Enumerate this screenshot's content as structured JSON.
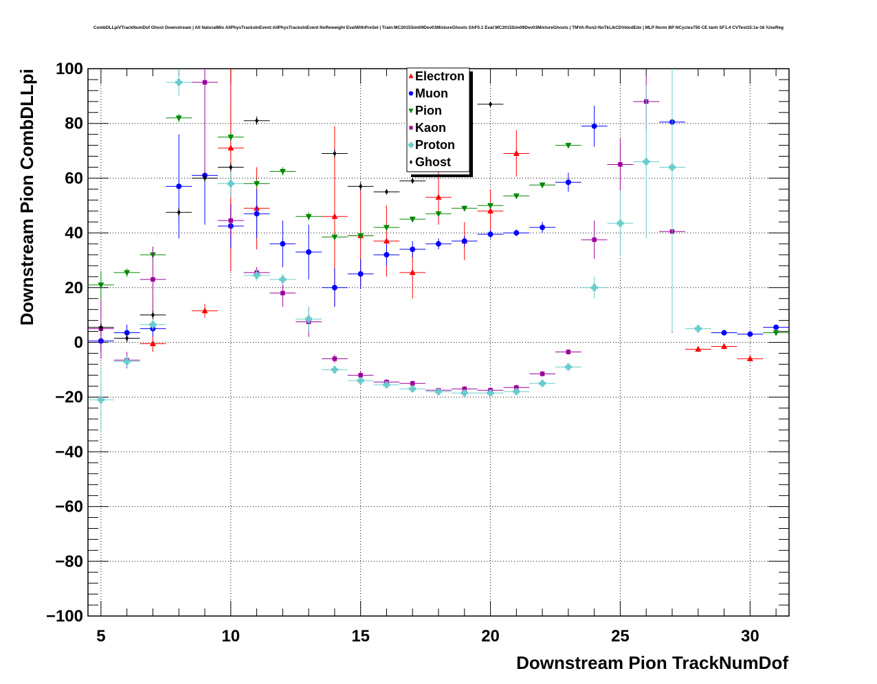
{
  "chart_data": {
    "type": "scatter",
    "title": "CombDLLpiVTrackNumDof Ghost Downstream | All NaturalMix AllPhysTracksInEvent:AllPhysTracksInEvent NoReweight EvalWithPreSel | Train:MC2015Sim09Dev03MixtureGhosts GhF0.1 Eval:MC2015Sim09Dev03MixtureGhosts | TMVA-Run2-NoTkLikCDVelodEdx | MLP Norm BP NCycles750 CE tanh SF1.4 CVTest15:1e-16 !UseReg",
    "xlabel": "Downstream Pion TrackNumDof",
    "ylabel": "Downstream Pion CombDLLpi",
    "xlim": [
      4.5,
      31.5
    ],
    "ylim": [
      -100,
      100
    ],
    "xticks": [
      5,
      10,
      15,
      20,
      25,
      30
    ],
    "yticks": [
      -100,
      -80,
      -60,
      -40,
      -20,
      0,
      20,
      40,
      60,
      80,
      100
    ],
    "grid": true,
    "legend_position": "top-center",
    "series": [
      {
        "name": "Electron",
        "color": "#ff0000",
        "marker": "triangle-up",
        "points": [
          [
            7,
            -0.5,
            3
          ],
          [
            9,
            11.5,
            2.5
          ],
          [
            10,
            71,
            45
          ],
          [
            11,
            49,
            15
          ],
          [
            14,
            46,
            33
          ],
          [
            15,
            39,
            19
          ],
          [
            16,
            37,
            13
          ],
          [
            17,
            25.5,
            9.5
          ],
          [
            18,
            53,
            10
          ],
          [
            19,
            37,
            7
          ],
          [
            20,
            48,
            8
          ],
          [
            21,
            69,
            8.5
          ],
          [
            28,
            -2.5,
            1
          ],
          [
            29,
            -1.5,
            1
          ],
          [
            30,
            -6,
            1
          ]
        ]
      },
      {
        "name": "Muon",
        "color": "#0000ff",
        "marker": "circle",
        "points": [
          [
            5,
            0.5,
            4
          ],
          [
            6,
            3.5,
            3
          ],
          [
            7,
            5,
            3
          ],
          [
            8,
            57,
            19
          ],
          [
            9,
            61,
            18
          ],
          [
            10,
            42.5,
            8
          ],
          [
            11,
            47,
            9
          ],
          [
            12,
            36,
            8.5
          ],
          [
            13,
            33,
            10
          ],
          [
            14,
            20,
            7
          ],
          [
            15,
            25,
            5.5
          ],
          [
            16,
            32,
            4
          ],
          [
            17,
            34,
            3
          ],
          [
            18,
            36,
            2
          ],
          [
            19,
            37,
            2
          ],
          [
            20,
            39.5,
            1.5
          ],
          [
            21,
            40,
            1.2
          ],
          [
            22,
            42,
            2
          ],
          [
            23,
            58.5,
            3.5
          ],
          [
            24,
            79,
            7.5
          ],
          [
            27,
            80.5,
            2
          ],
          [
            29,
            3.5,
            1
          ],
          [
            30,
            3,
            1
          ],
          [
            31,
            5.5,
            1
          ]
        ]
      },
      {
        "name": "Pion",
        "color": "#008800",
        "marker": "triangle-down",
        "points": [
          [
            5,
            21,
            5
          ],
          [
            6,
            25.5,
            1.5
          ],
          [
            7,
            32,
            2
          ],
          [
            8,
            82,
            1.5
          ],
          [
            10,
            75,
            1.5
          ],
          [
            11,
            58,
            1.5
          ],
          [
            12,
            62.5,
            1.5
          ],
          [
            13,
            46,
            1.5
          ],
          [
            14,
            38.5,
            1.2
          ],
          [
            15,
            39,
            1.2
          ],
          [
            16,
            42,
            1
          ],
          [
            17,
            45,
            1
          ],
          [
            18,
            47,
            1
          ],
          [
            19,
            49,
            1
          ],
          [
            20,
            50,
            1
          ],
          [
            21,
            53.5,
            1
          ],
          [
            22,
            57.5,
            1
          ],
          [
            23,
            72,
            1
          ],
          [
            31,
            3.5,
            1
          ]
        ]
      },
      {
        "name": "Kaon",
        "color": "#990099",
        "marker": "square",
        "points": [
          [
            5,
            5,
            11
          ],
          [
            6,
            -6.5,
            3
          ],
          [
            7,
            23,
            12
          ],
          [
            9,
            95,
            35
          ],
          [
            10,
            44.5,
            6
          ],
          [
            11,
            25.5,
            2
          ],
          [
            12,
            18,
            5
          ],
          [
            13,
            7.5,
            5.5
          ],
          [
            14,
            -6,
            1.5
          ],
          [
            15,
            -12,
            1.5
          ],
          [
            16,
            -14.5,
            1
          ],
          [
            17,
            -15,
            1
          ],
          [
            18,
            -17.5,
            1
          ],
          [
            19,
            -17,
            1
          ],
          [
            20,
            -17.5,
            1
          ],
          [
            21,
            -16.5,
            1
          ],
          [
            22,
            -11.5,
            1
          ],
          [
            23,
            -3.5,
            1
          ],
          [
            24,
            37.5,
            7
          ],
          [
            25,
            65,
            9.5
          ],
          [
            26,
            88,
            10
          ],
          [
            27,
            40.5,
            37
          ]
        ]
      },
      {
        "name": "Proton",
        "color": "#66cccc",
        "marker": "cross",
        "points": [
          [
            5,
            -21,
            12
          ],
          [
            6,
            -7,
            2
          ],
          [
            7,
            6.5,
            2
          ],
          [
            8,
            95,
            5
          ],
          [
            10,
            58,
            5
          ],
          [
            11,
            24.5,
            2
          ],
          [
            12,
            23,
            2
          ],
          [
            13,
            8.5,
            4.5
          ],
          [
            14,
            -10,
            1.5
          ],
          [
            15,
            -14,
            1.2
          ],
          [
            16,
            -15.5,
            1
          ],
          [
            17,
            -17,
            1
          ],
          [
            18,
            -18,
            1
          ],
          [
            19,
            -18.5,
            1
          ],
          [
            20,
            -18.5,
            1
          ],
          [
            21,
            -18,
            1
          ],
          [
            22,
            -15,
            1
          ],
          [
            23,
            -9,
            1
          ],
          [
            24,
            20,
            4
          ],
          [
            25,
            43.5,
            12
          ],
          [
            26,
            66,
            28
          ],
          [
            27,
            64,
            60
          ],
          [
            28,
            5,
            1.5
          ]
        ]
      },
      {
        "name": "Ghost",
        "color": "#000000",
        "marker": "diamond",
        "points": [
          [
            5,
            5.5,
            1.5
          ],
          [
            6,
            1.5,
            1.5
          ],
          [
            7,
            10,
            1.5
          ],
          [
            8,
            47.5,
            1.5
          ],
          [
            9,
            60,
            1.5
          ],
          [
            10,
            64,
            1.5
          ],
          [
            11,
            81,
            1.5
          ],
          [
            14,
            69,
            1.5
          ],
          [
            15,
            57,
            1.5
          ],
          [
            16,
            55,
            1
          ],
          [
            17,
            59,
            1
          ],
          [
            20,
            87,
            1
          ]
        ]
      }
    ]
  }
}
